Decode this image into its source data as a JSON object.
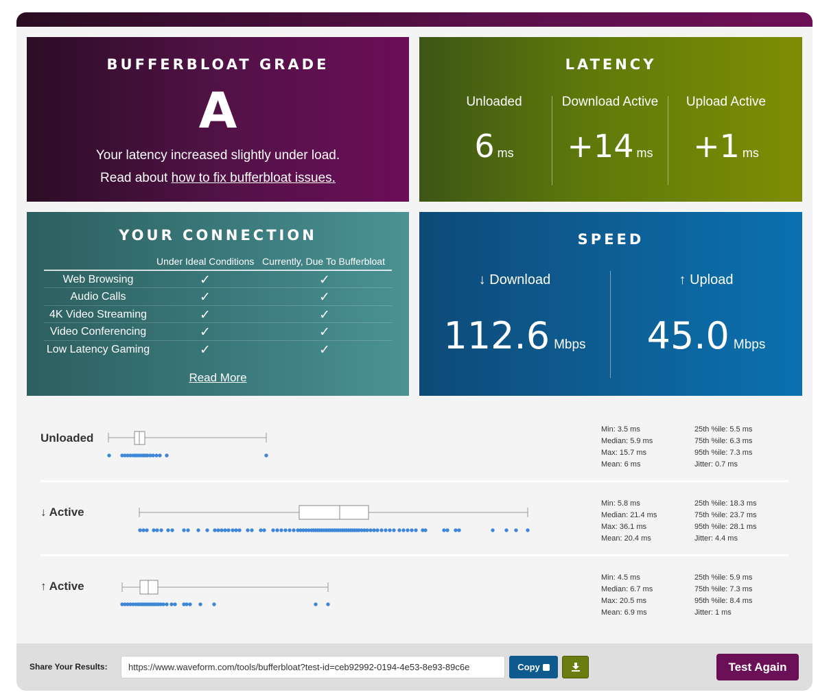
{
  "grade": {
    "title": "BUFFERBLOAT GRADE",
    "letter": "A",
    "message": "Your latency increased slightly under load.",
    "fix_prefix": "Read about ",
    "fix_link": "how to fix bufferbloat issues."
  },
  "latency": {
    "title": "LATENCY",
    "columns": [
      {
        "label": "Unloaded",
        "value": "6",
        "unit": "ms"
      },
      {
        "label": "Download Active",
        "value": "+14",
        "unit": "ms"
      },
      {
        "label": "Upload Active",
        "value": "+1",
        "unit": "ms"
      }
    ]
  },
  "connection": {
    "title": "YOUR CONNECTION",
    "col_ideal": "Under Ideal Conditions",
    "col_current": "Currently, Due To Bufferbloat",
    "check": "✓",
    "rows": [
      {
        "name": "Web Browsing",
        "ideal": true,
        "current": true
      },
      {
        "name": "Audio Calls",
        "ideal": true,
        "current": true
      },
      {
        "name": "4K Video Streaming",
        "ideal": true,
        "current": true
      },
      {
        "name": "Video Conferencing",
        "ideal": true,
        "current": true
      },
      {
        "name": "Low Latency Gaming",
        "ideal": true,
        "current": true
      }
    ],
    "read_more": "Read More"
  },
  "speed": {
    "title": "SPEED",
    "download": {
      "label": "↓ Download",
      "value": "112.6",
      "unit": "Mbps"
    },
    "upload": {
      "label": "↑ Upload",
      "value": "45.0",
      "unit": "Mbps"
    }
  },
  "stats": {
    "unloaded": {
      "label": "Unloaded",
      "min": "Min: 3.5 ms",
      "median": "Median: 5.9 ms",
      "max": "Max: 15.7 ms",
      "mean": "Mean: 6 ms",
      "p25": "25th %ile: 5.5 ms",
      "p75": "75th %ile: 6.3 ms",
      "p95": "95th %ile: 7.3 ms",
      "jitter": "Jitter: 0.7 ms"
    },
    "download_active": {
      "label": "↓ Active",
      "min": "Min: 5.8 ms",
      "median": "Median: 21.4 ms",
      "max": "Max: 36.1 ms",
      "mean": "Mean: 20.4 ms",
      "p25": "25th %ile: 18.3 ms",
      "p75": "75th %ile: 23.7 ms",
      "p95": "95th %ile: 28.1 ms",
      "jitter": "Jitter: 4.4 ms"
    },
    "upload_active": {
      "label": "↑ Active",
      "min": "Min: 4.5 ms",
      "median": "Median: 6.7 ms",
      "max": "Max: 20.5 ms",
      "mean": "Mean: 6.9 ms",
      "p25": "25th %ile: 5.9 ms",
      "p75": "75th %ile: 7.3 ms",
      "p95": "95th %ile: 8.4 ms",
      "jitter": "Jitter: 1 ms"
    }
  },
  "footer": {
    "share_label": "Share Your Results:",
    "share_url": "https://www.waveform.com/tools/bufferbloat?test-id=ceb92992-0194-4e53-8e93-89c6e",
    "copy_label": "Copy",
    "download_icon": "download-icon",
    "test_again": "Test Again"
  },
  "colors": {
    "grade_bg": "#511246",
    "latency_bg": "#5f7a0a",
    "connection_bg": "#3b7a7c",
    "speed_bg": "#0e5e94",
    "dots": "#3e86d8",
    "test_again_bg": "#6b0f57"
  }
}
